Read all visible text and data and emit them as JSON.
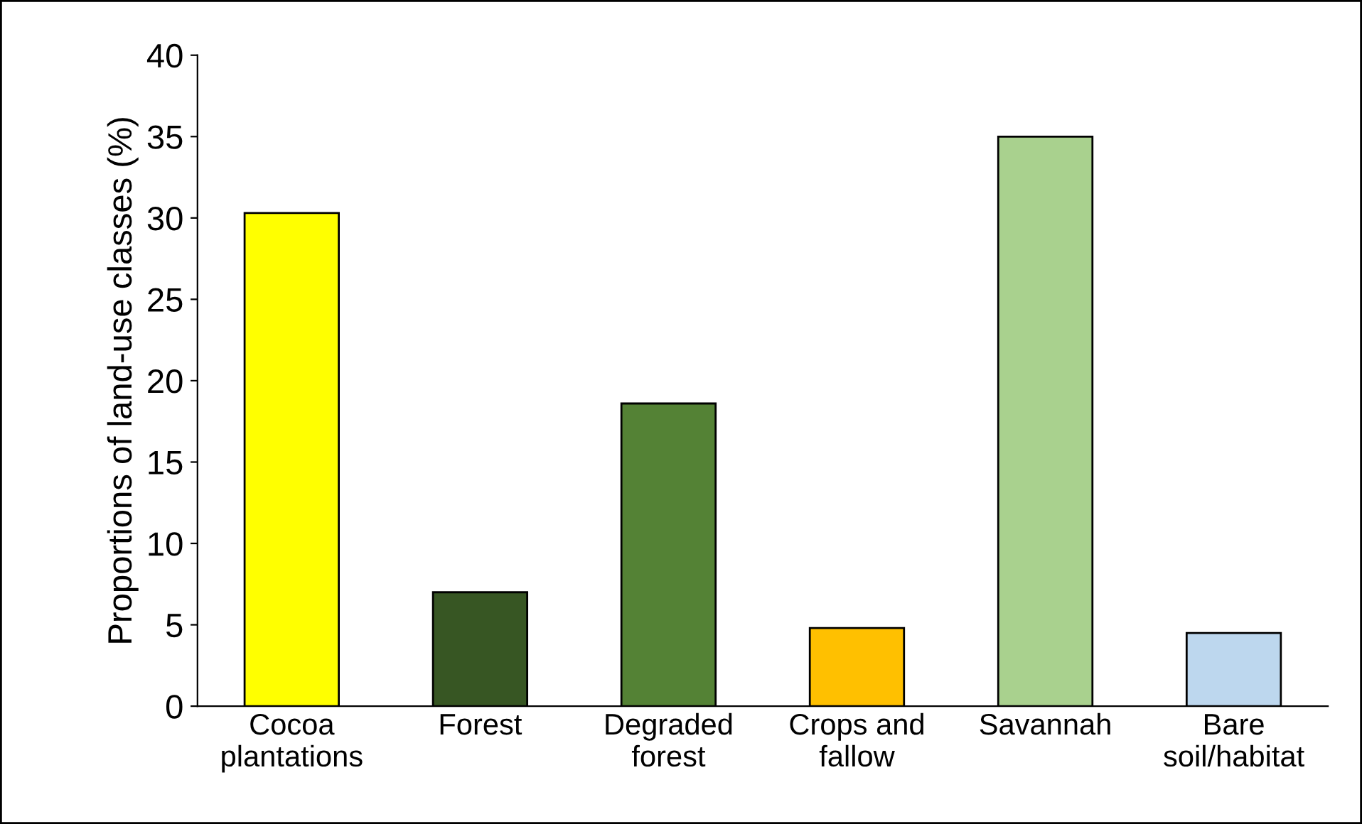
{
  "chart_data": {
    "type": "bar",
    "ylabel": "Proportions of land-use classes (%)",
    "categories": [
      "Cocoa\nplantations",
      "Forest",
      "Degraded\nforest",
      "Crops and\nfallow",
      "Savannah",
      "Bare\nsoil/habitat"
    ],
    "values": [
      30.3,
      7.0,
      18.6,
      4.8,
      35.0,
      4.5
    ],
    "colors": [
      "#ffff00",
      "#375623",
      "#548235",
      "#ffc000",
      "#a9d18e",
      "#bdd7ee"
    ],
    "ylim": [
      0,
      40
    ],
    "yticks": [
      0,
      5,
      10,
      15,
      20,
      25,
      30,
      35,
      40
    ],
    "grid": false,
    "legend": false
  }
}
